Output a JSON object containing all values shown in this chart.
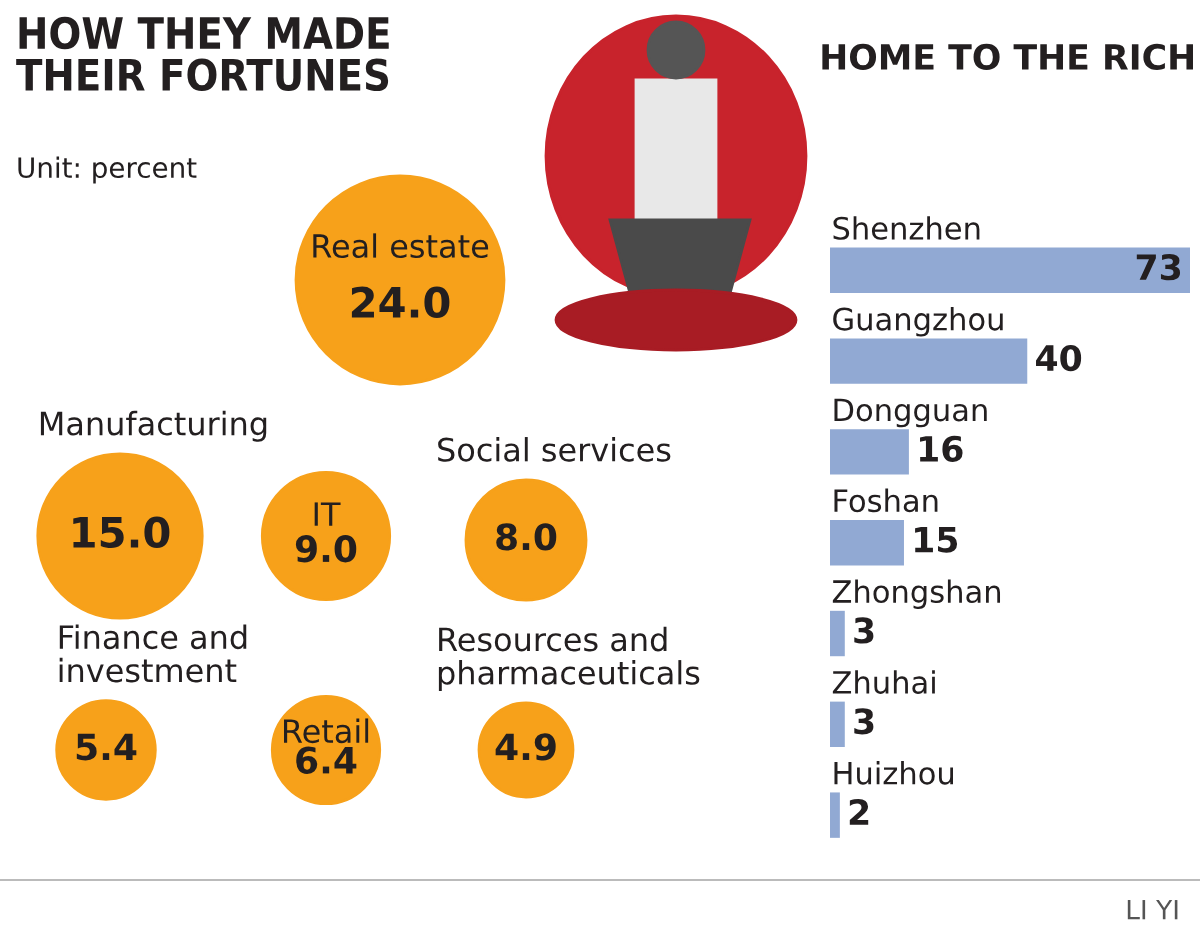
{
  "chart_data": [
    {
      "type": "other",
      "title": "HOW THEY MADE\nTHEIR FORTUNES",
      "subtitle": "Unit: percent",
      "categories": [
        "Real estate",
        "Manufacturing",
        "IT",
        "Social services",
        "Finance and\ninvestment",
        "Retail",
        "Resources and\npharmaceuticals"
      ],
      "values": [
        24.0,
        15.0,
        9.0,
        8.0,
        5.4,
        6.4,
        4.9
      ],
      "value_labels": [
        "24.0",
        "15.0",
        "9.0",
        "8.0",
        "5.4",
        "6.4",
        "4.9"
      ],
      "color": "#f7a11a"
    },
    {
      "type": "bar",
      "orientation": "horizontal",
      "title": "HOME TO THE RICH",
      "categories": [
        "Shenzhen",
        "Guangzhou",
        "Dongguan",
        "Foshan",
        "Zhongshan",
        "Zhuhai",
        "Huizhou"
      ],
      "values": [
        73,
        40,
        16,
        15,
        3,
        3,
        2
      ],
      "color": "#91a9d3",
      "data_labels": true,
      "annotations": [
        "LI YI"
      ]
    }
  ]
}
